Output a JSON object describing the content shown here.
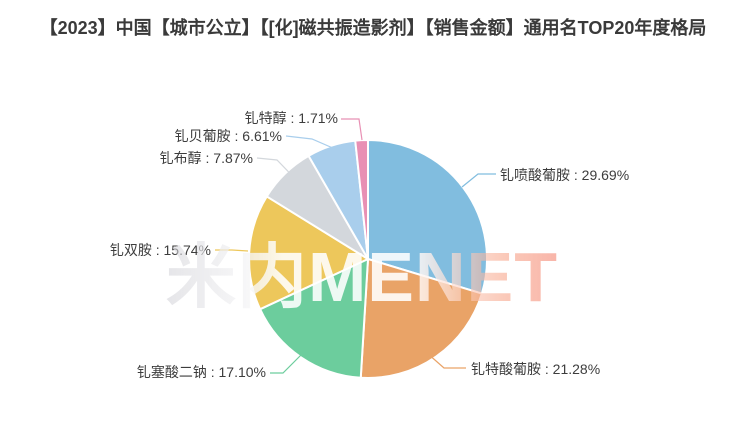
{
  "title": "【2023】中国【城市公立】【[化]磁共振造影剂】【销售金额】通用名TOP20年度格局",
  "watermark": "米内MENET",
  "chart_data": {
    "type": "pie",
    "title": "【2023】中国【城市公立】【[化]磁共振造影剂】【销售金额】通用名TOP20年度格局",
    "unit": "%",
    "label_format": "{name} : {value}%",
    "start_angle_deg": 0,
    "direction": "clockwise",
    "legend": "none",
    "slices": [
      {
        "name": "钆喷酸葡胺",
        "value": 29.69,
        "color": "#81BDDF"
      },
      {
        "name": "钆特酸葡胺",
        "value": 21.28,
        "color": "#E9A367"
      },
      {
        "name": "钆塞酸二钠",
        "value": 17.1,
        "color": "#6CCD9D"
      },
      {
        "name": "钆双胺",
        "value": 15.74,
        "color": "#EDC75B"
      },
      {
        "name": "钆布醇",
        "value": 7.87,
        "color": "#D3D7DC"
      },
      {
        "name": "钆贝葡胺",
        "value": 6.61,
        "color": "#A9CEEC"
      },
      {
        "name": "钆特醇",
        "value": 1.71,
        "color": "#E890B4"
      }
    ]
  }
}
